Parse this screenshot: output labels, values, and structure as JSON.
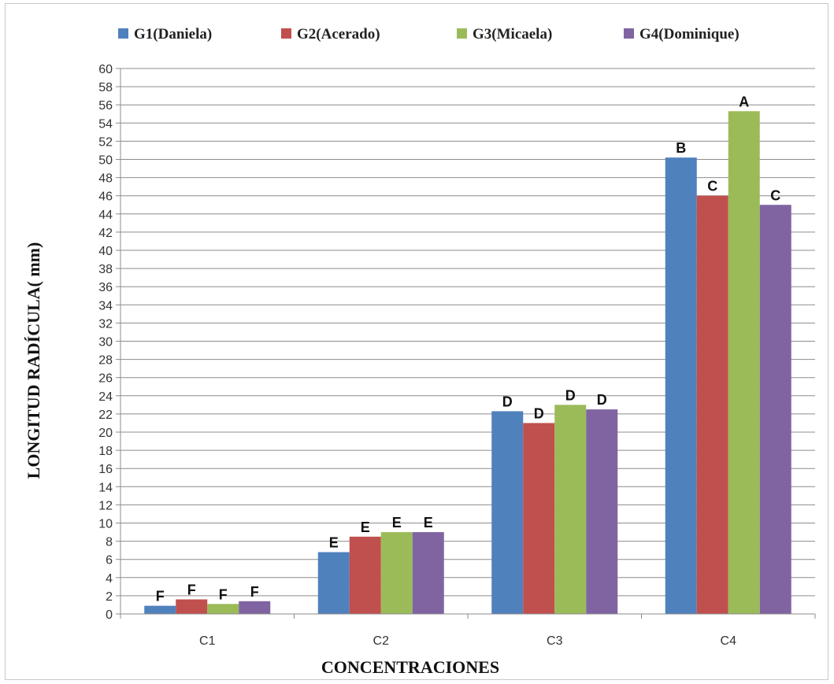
{
  "chart_data": {
    "type": "bar",
    "categories": [
      "C1",
      "C2",
      "C3",
      "C4"
    ],
    "series": [
      {
        "name": "G1(Daniela)",
        "color": "#4f81bd",
        "values": [
          0.9,
          6.8,
          22.3,
          50.2
        ],
        "labels": [
          "F",
          "E",
          "D",
          "B"
        ]
      },
      {
        "name": "G2(Acerado)",
        "color": "#c0504d",
        "values": [
          1.6,
          8.5,
          21.0,
          46.0
        ],
        "labels": [
          "F",
          "E",
          "D",
          "C"
        ]
      },
      {
        "name": "G3(Micaela)",
        "color": "#9bbb59",
        "values": [
          1.1,
          9.0,
          23.0,
          55.3
        ],
        "labels": [
          "F",
          "E",
          "D",
          "A"
        ]
      },
      {
        "name": "G4(Dominique)",
        "color": "#8064a2",
        "values": [
          1.4,
          9.0,
          22.5,
          45.0
        ],
        "labels": [
          "F",
          "E",
          "D",
          "C"
        ]
      }
    ],
    "title": "",
    "xlabel": "CONCENTRACIONES",
    "ylabel": "LONGITUD RADÍCULA( mm)",
    "ylim": [
      0,
      60
    ],
    "ytick_step": 2,
    "grid": true,
    "legend_position": "top"
  }
}
